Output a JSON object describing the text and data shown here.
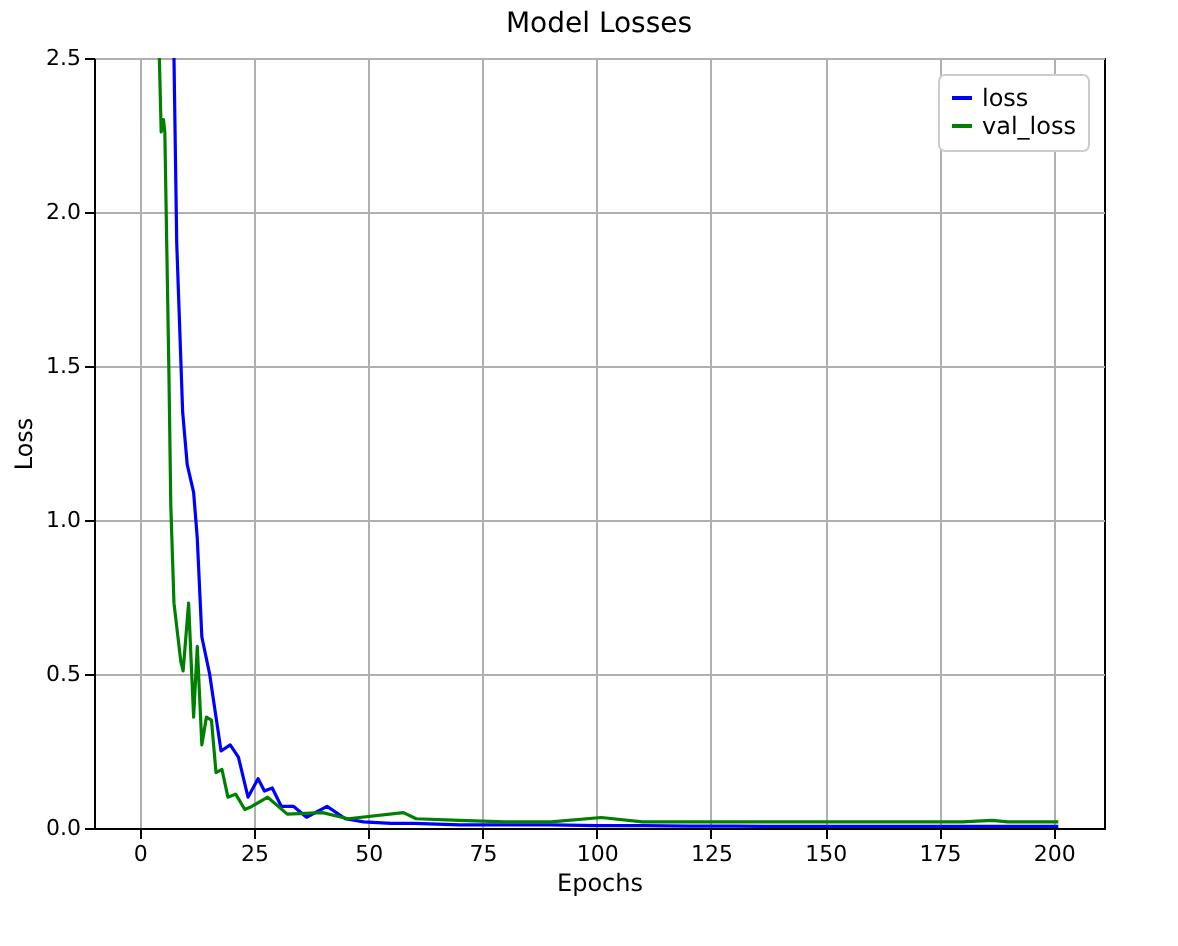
{
  "chart_data": {
    "type": "line",
    "title": "Model Losses",
    "xlabel": "Epochs",
    "ylabel": "Loss",
    "xlim": [
      -10,
      211
    ],
    "xticks": [
      0,
      25,
      50,
      75,
      100,
      125,
      150,
      175,
      200
    ],
    "ylim": [
      0,
      2.5
    ],
    "yticks": [
      {
        "value": 0,
        "label": "0.0"
      },
      0.5,
      {
        "value": 1,
        "label": "1.0"
      },
      1.5,
      {
        "value": 2,
        "label": "2.0"
      },
      2.5
    ],
    "grid": true,
    "legend": "top right",
    "line_style": "solid",
    "marker": "none",
    "series": [
      {
        "name": "loss",
        "color": "#0000ff",
        "x": [
          7.5,
          8.1,
          9.4,
          10.4,
          11.8,
          12.6,
          13.6,
          15.3,
          17,
          17.8,
          19.8,
          21.6,
          23.7,
          25.9,
          27.3,
          29,
          31,
          33.7,
          36.5,
          41,
          45,
          49,
          55,
          60,
          70,
          80,
          90,
          100,
          110,
          120,
          130,
          140,
          150,
          160,
          170,
          180,
          190,
          201
        ],
        "values": [
          2.5,
          1.9,
          1.35,
          1.18,
          1.09,
          0.94,
          0.62,
          0.5,
          0.33,
          0.25,
          0.27,
          0.23,
          0.1,
          0.16,
          0.12,
          0.13,
          0.07,
          0.07,
          0.035,
          0.07,
          0.03,
          0.02,
          0.015,
          0.015,
          0.01,
          0.01,
          0.01,
          0.008,
          0.008,
          0.006,
          0.006,
          0.005,
          0.005,
          0.005,
          0.005,
          0.005,
          0.005,
          0.005
        ]
      },
      {
        "name": "val_loss",
        "color": "#008000",
        "x": [
          4.3,
          4.7,
          5.2,
          5.5,
          6.4,
          6.8,
          7.5,
          9,
          9.5,
          10.7,
          11.8,
          12.6,
          13.6,
          14.6,
          15.7,
          16.7,
          18,
          19.3,
          21,
          23,
          24.5,
          28,
          32.3,
          40,
          45.6,
          57.7,
          60.5,
          70,
          80,
          90,
          101,
          110,
          120,
          130,
          140,
          150,
          160,
          170,
          180,
          186.5,
          190,
          201
        ],
        "values": [
          2.5,
          2.26,
          2.3,
          2.26,
          1.47,
          1.05,
          0.73,
          0.54,
          0.51,
          0.73,
          0.36,
          0.59,
          0.27,
          0.36,
          0.35,
          0.18,
          0.19,
          0.1,
          0.11,
          0.06,
          0.07,
          0.1,
          0.045,
          0.05,
          0.03,
          0.05,
          0.03,
          0.025,
          0.02,
          0.02,
          0.034,
          0.02,
          0.02,
          0.02,
          0.02,
          0.02,
          0.02,
          0.02,
          0.02,
          0.025,
          0.02,
          0.02
        ]
      }
    ]
  }
}
